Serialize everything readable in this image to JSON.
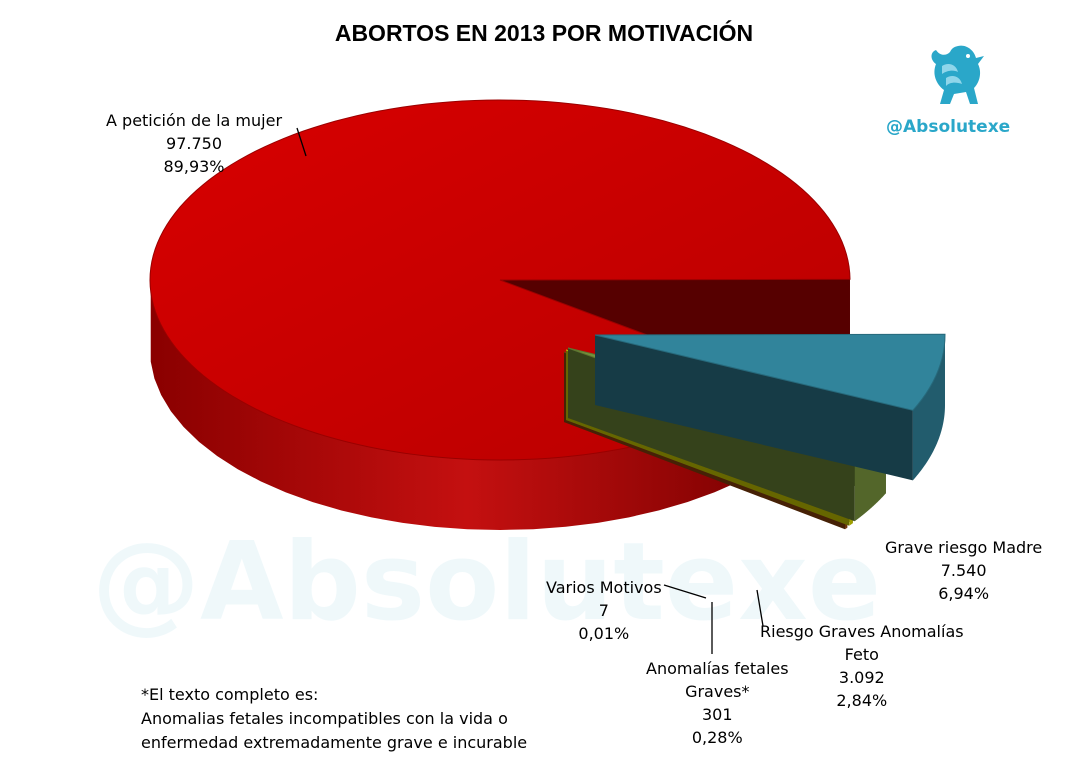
{
  "chart_data": {
    "type": "pie",
    "title": "ABORTOS EN 2013 POR MOTIVACIÓN",
    "slices": [
      {
        "name": "A petición de la mujer",
        "value_label": "97.750",
        "percent_label": "89,93%",
        "value": 97750,
        "percent": 89.93,
        "color": "#c00000"
      },
      {
        "name": "Grave riesgo Madre",
        "value_label": "7.540",
        "percent_label": "6,94%",
        "value": 7540,
        "percent": 6.94,
        "color": "#31849b"
      },
      {
        "name": "Riesgo Graves Anomalías Feto",
        "value_label": "3.092",
        "percent_label": "2,84%",
        "value": 3092,
        "percent": 2.84,
        "color": "#76923c"
      },
      {
        "name": "Anomalías fetales Graves*",
        "value_label": "301",
        "percent_label": "0,28%",
        "value": 301,
        "percent": 0.28,
        "color": "#e3e300"
      },
      {
        "name": "Varios Motivos",
        "value_label": "7",
        "percent_label": "0,01%",
        "value": 7,
        "percent": 0.01,
        "color": "#9b4a0e"
      }
    ]
  },
  "labels": {
    "mujer": [
      "A petición de la mujer",
      "97.750",
      "89,93%"
    ],
    "madre": [
      "Grave riesgo Madre",
      "7.540",
      "6,94%"
    ],
    "feto": [
      "Riesgo Graves Anomalías",
      "Feto",
      "3.092",
      "2,84%"
    ],
    "graves": [
      "Anomalías fetales",
      "Graves*",
      "301",
      "0,28%"
    ],
    "varios": [
      "Varios Motivos",
      "7",
      "0,01%"
    ]
  },
  "brand": {
    "handle": "@Absolutexe",
    "watermark": "@Absolutexe",
    "logo_icon": "griffin-icon"
  },
  "footnote": [
    "*El texto completo es:",
    "Anomalias fetales incompatibles con la vida o",
    "enfermedad extremadamente grave e incurable"
  ]
}
